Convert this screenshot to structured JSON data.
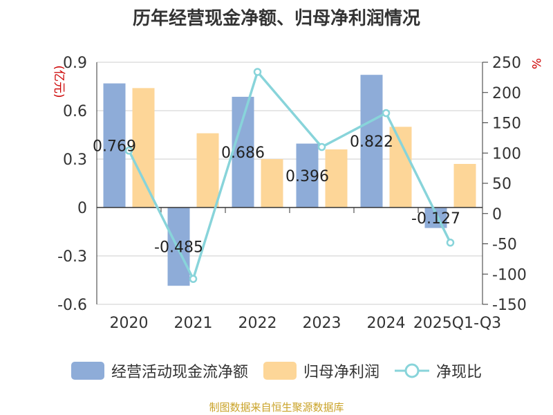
{
  "chart_data": {
    "type": "bar",
    "title": "历年经营现金净额、归母净利润情况",
    "categories": [
      "2020",
      "2021",
      "2022",
      "2023",
      "2024",
      "2025Q1-Q3"
    ],
    "series": [
      {
        "name": "经营活动现金流净额",
        "type": "bar",
        "axis": "left",
        "values": [
          0.769,
          -0.485,
          0.686,
          0.396,
          0.822,
          -0.127
        ],
        "color": "#8eacd8"
      },
      {
        "name": "归母净利润",
        "type": "bar",
        "axis": "left",
        "values": [
          0.74,
          0.46,
          0.3,
          0.36,
          0.5,
          0.27
        ],
        "color": "#fdd698"
      },
      {
        "name": "净现比",
        "type": "line",
        "axis": "right",
        "values": [
          104,
          -108,
          234,
          110,
          166,
          -48
        ],
        "color": "#88d4da"
      }
    ],
    "data_labels": [
      "0.769",
      "-0.485",
      "0.686",
      "0.396",
      "0.822",
      "-0.127"
    ],
    "ylabel_left": "(亿元)",
    "ylabel_right": "%",
    "ylim_left": [
      -0.6,
      0.9
    ],
    "yticks_left": [
      "0.9",
      "0.6",
      "0.3",
      "0",
      "-0.3",
      "-0.6"
    ],
    "ylim_right": [
      -150,
      250
    ],
    "yticks_right": [
      "250",
      "200",
      "150",
      "100",
      "50",
      "0",
      "-50",
      "-100",
      "-150"
    ],
    "grid": true,
    "legend_position": "bottom"
  },
  "legend": {
    "cash_flow": "经营活动现金流净额",
    "net_profit": "归母净利润",
    "ratio": "净现比"
  },
  "source": "制图数据来自恒生聚源数据库",
  "colors": {
    "cash": "#8eacd8",
    "profit": "#fdd698",
    "ratio": "#88d4da",
    "axis_label": "#cc0000"
  }
}
